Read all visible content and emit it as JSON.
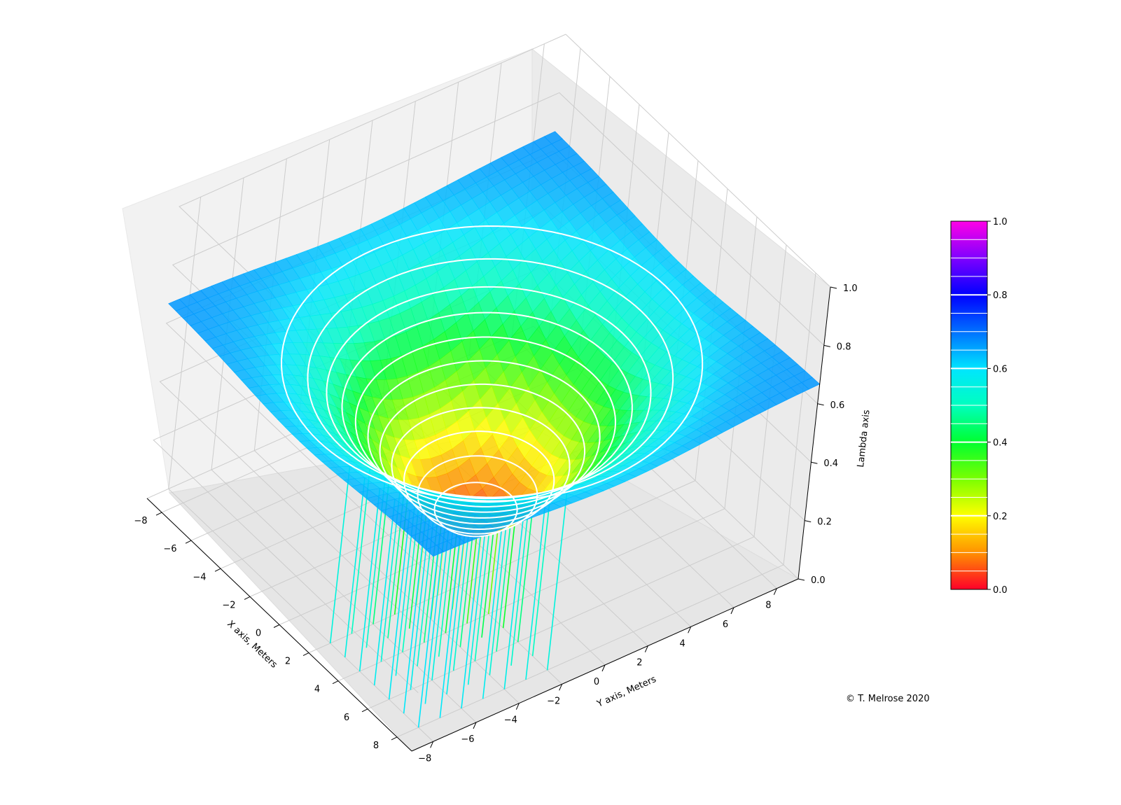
{
  "chart_data": {
    "type": "surface3d",
    "title": "",
    "xlabel": "X axis, Meters",
    "ylabel": "Y axis, Meters",
    "zlabel": "Lambda axis",
    "xlim": [
      -9,
      9
    ],
    "ylim": [
      -9,
      9
    ],
    "zlim": [
      0,
      1
    ],
    "x_ticks": [
      -8,
      -6,
      -4,
      -2,
      0,
      2,
      4,
      6,
      8
    ],
    "y_ticks": [
      -8,
      -6,
      -4,
      -2,
      0,
      2,
      4,
      6,
      8
    ],
    "z_ticks": [
      0.0,
      0.2,
      0.4,
      0.6,
      0.8,
      1.0
    ],
    "x_tick_labels": [
      "−8",
      "−6",
      "−4",
      "−2",
      "0",
      "2",
      "4",
      "6",
      "8"
    ],
    "y_tick_labels": [
      "−8",
      "−6",
      "−4",
      "−2",
      "0",
      "2",
      "4",
      "6",
      "8"
    ],
    "z_tick_labels": [
      "0.0",
      "0.2",
      "0.4",
      "0.6",
      "0.8",
      "1.0"
    ],
    "grid": true,
    "surface": {
      "description_values": "lambda = 0.62 * (x^2+y^2)^0.5 / (1 + (x^2+y^2)^0.5) style bowl; minimum ~0.05 at origin, ~0.6 at corners",
      "min_value": 0.05,
      "edge_value": 0.58,
      "corner_value": 0.62
    },
    "contour_levels": [
      0.1,
      0.15,
      0.2,
      0.25,
      0.3,
      0.35,
      0.4,
      0.45,
      0.5,
      0.55,
      0.6
    ],
    "stems": {
      "positions": [
        -8,
        -6,
        -4,
        -2,
        0,
        2,
        4,
        6,
        8
      ],
      "colormap_values": "stem color follows lambda at its position"
    },
    "colorbar": {
      "min": 0.0,
      "max": 1.0,
      "ticks": [
        0.0,
        0.2,
        0.4,
        0.6,
        0.8,
        1.0
      ],
      "tick_labels": [
        "0.0",
        "0.2",
        "0.4",
        "0.6",
        "0.8",
        "1.0"
      ],
      "colormap": "gist_rainbow_r",
      "stops": [
        "#ff0029",
        "#ff9100",
        "#ffff00",
        "#7aff00",
        "#00ff30",
        "#00ffbf",
        "#00e5ff",
        "#0070ff",
        "#0000ff",
        "#8000ff",
        "#ff00e6"
      ]
    },
    "annotation": "© T. Melrose 2020"
  },
  "colors": {
    "pane": "#f2f2f2",
    "pane_edge": "#e6e6e6",
    "grid": "#cccccc",
    "contour": "#ffffff"
  }
}
